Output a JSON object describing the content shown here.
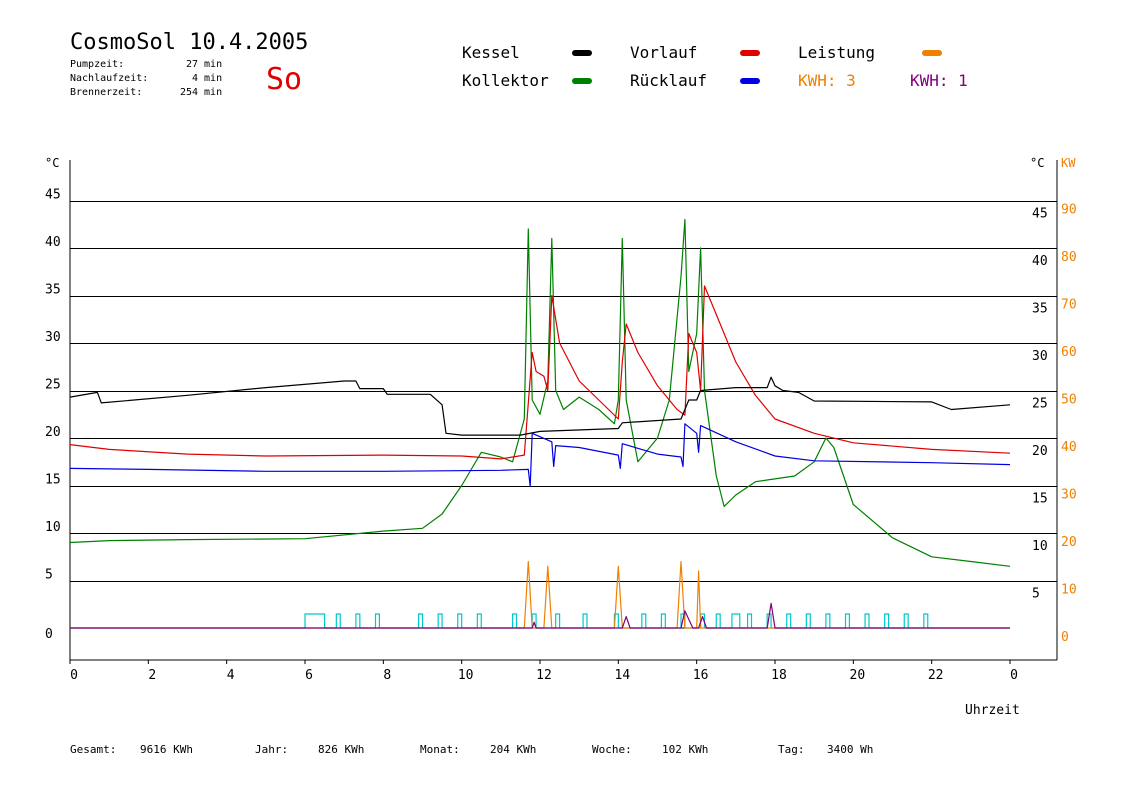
{
  "header": {
    "title": "CosmoSol 10.4.2005",
    "day": "So",
    "stats": [
      {
        "label": "Pumpzeit:",
        "value": "27",
        "unit": "min"
      },
      {
        "label": "Nachlaufzeit:",
        "value": "4",
        "unit": "min"
      },
      {
        "label": "Brennerzeit:",
        "value": "254",
        "unit": "min"
      }
    ]
  },
  "legend": {
    "kessel": {
      "label": "Kessel",
      "color": "#000000"
    },
    "vorlauf": {
      "label": "Vorlauf",
      "color": "#e00000"
    },
    "leistung": {
      "label": "Leistung",
      "color": "#f08000"
    },
    "kollektor": {
      "label": "Kollektor",
      "color": "#008000"
    },
    "ruecklauf": {
      "label": "Rücklauf",
      "color": "#0000e0"
    },
    "kwh1": {
      "label": "KWH: 3",
      "color": "#f08000"
    },
    "kwh2": {
      "label": "KWH: 1",
      "color": "#800080"
    }
  },
  "footer": [
    {
      "label": "Gesamt:",
      "value": "9616 KWh"
    },
    {
      "label": "Jahr:",
      "value": "826 KWh"
    },
    {
      "label": "Monat:",
      "value": "204 KWh"
    },
    {
      "label": "Woche:",
      "value": "102 KWh"
    },
    {
      "label": "Tag:",
      "value": "3400 Wh"
    }
  ],
  "chart_data": {
    "type": "line",
    "xlabel": "Uhrzeit",
    "ylabel_left": "°C",
    "ylabel_right_temp": "°C",
    "ylabel_right_power": "KW",
    "x_range": [
      0,
      24
    ],
    "x_ticks": [
      "0",
      "2",
      "4",
      "6",
      "8",
      "10",
      "12",
      "14",
      "16",
      "18",
      "20",
      "22",
      "0"
    ],
    "y_range": [
      0,
      50
    ],
    "y_ticks_left": [
      "0",
      "5",
      "10",
      "15",
      "20",
      "25",
      "30",
      "35",
      "40",
      "45"
    ],
    "y_ticks_right_temp": [
      "5",
      "10",
      "15",
      "20",
      "25",
      "30",
      "35",
      "40",
      "45"
    ],
    "y_ticks_right_power": [
      "0",
      "10",
      "20",
      "30",
      "40",
      "50",
      "60",
      "70",
      "80",
      "90"
    ],
    "grid": "horizontal",
    "series": [
      {
        "name": "Kessel",
        "color": "#000000",
        "points": [
          [
            0,
            24.3
          ],
          [
            0.7,
            24.8
          ],
          [
            0.8,
            23.7
          ],
          [
            3,
            24.5
          ],
          [
            5,
            25.3
          ],
          [
            7,
            26
          ],
          [
            7.3,
            26
          ],
          [
            7.4,
            25.2
          ],
          [
            8,
            25.2
          ],
          [
            8.1,
            24.6
          ],
          [
            9.2,
            24.6
          ],
          [
            9.5,
            23.5
          ],
          [
            9.6,
            20.5
          ],
          [
            10,
            20.3
          ],
          [
            11.5,
            20.3
          ],
          [
            12,
            20.7
          ],
          [
            14,
            21
          ],
          [
            14.1,
            21.6
          ],
          [
            15.6,
            22
          ],
          [
            15.8,
            24
          ],
          [
            16,
            24
          ],
          [
            16.1,
            25
          ],
          [
            17,
            25.3
          ],
          [
            17.8,
            25.3
          ],
          [
            17.9,
            26.4
          ],
          [
            18,
            25.5
          ],
          [
            18.2,
            25
          ],
          [
            18.6,
            24.8
          ],
          [
            19,
            23.9
          ],
          [
            22,
            23.8
          ],
          [
            22.5,
            23
          ],
          [
            24,
            23.5
          ]
        ]
      },
      {
        "name": "Vorlauf",
        "color": "#e00000",
        "points": [
          [
            0,
            19.3
          ],
          [
            1,
            18.8
          ],
          [
            3,
            18.3
          ],
          [
            5,
            18.1
          ],
          [
            8,
            18.2
          ],
          [
            10,
            18.1
          ],
          [
            11,
            17.8
          ],
          [
            11.6,
            18.2
          ],
          [
            11.8,
            29
          ],
          [
            11.9,
            27
          ],
          [
            12.1,
            26.5
          ],
          [
            12.2,
            25
          ],
          [
            12.3,
            35
          ],
          [
            12.5,
            30
          ],
          [
            13,
            26
          ],
          [
            13.5,
            24
          ],
          [
            14,
            22
          ],
          [
            14.1,
            28
          ],
          [
            14.2,
            32
          ],
          [
            14.5,
            29
          ],
          [
            15,
            25.5
          ],
          [
            15.5,
            23
          ],
          [
            15.7,
            22.4
          ],
          [
            15.8,
            31
          ],
          [
            16,
            29
          ],
          [
            16.1,
            25
          ],
          [
            16.2,
            36
          ],
          [
            16.5,
            33
          ],
          [
            17,
            28
          ],
          [
            17.5,
            24.5
          ],
          [
            18,
            22
          ],
          [
            19,
            20.5
          ],
          [
            20,
            19.5
          ],
          [
            22,
            18.8
          ],
          [
            24,
            18.4
          ]
        ]
      },
      {
        "name": "Rücklauf",
        "color": "#0000e0",
        "points": [
          [
            0,
            16.8
          ],
          [
            2,
            16.7
          ],
          [
            5,
            16.5
          ],
          [
            8,
            16.5
          ],
          [
            11,
            16.6
          ],
          [
            11.7,
            16.7
          ],
          [
            11.75,
            14.9
          ],
          [
            11.8,
            20.5
          ],
          [
            12.3,
            19.6
          ],
          [
            12.35,
            17
          ],
          [
            12.4,
            19.2
          ],
          [
            13,
            19
          ],
          [
            14,
            18.2
          ],
          [
            14.05,
            16.8
          ],
          [
            14.1,
            19.4
          ],
          [
            15,
            18.3
          ],
          [
            15.6,
            18
          ],
          [
            15.65,
            17
          ],
          [
            15.7,
            21.5
          ],
          [
            16,
            20.5
          ],
          [
            16.05,
            18.5
          ],
          [
            16.1,
            21.3
          ],
          [
            17,
            19.6
          ],
          [
            18,
            18.1
          ],
          [
            19,
            17.6
          ],
          [
            22,
            17.4
          ],
          [
            24,
            17.2
          ]
        ]
      },
      {
        "name": "Kollektor",
        "color": "#008000",
        "points": [
          [
            0,
            9
          ],
          [
            1,
            9.2
          ],
          [
            3,
            9.3
          ],
          [
            6,
            9.4
          ],
          [
            8,
            10.2
          ],
          [
            9,
            10.5
          ],
          [
            9.5,
            12
          ],
          [
            10,
            15
          ],
          [
            10.5,
            18.5
          ],
          [
            11,
            18
          ],
          [
            11.3,
            17.5
          ],
          [
            11.6,
            22
          ],
          [
            11.7,
            42
          ],
          [
            11.8,
            24
          ],
          [
            12,
            22.5
          ],
          [
            12.2,
            26
          ],
          [
            12.3,
            41
          ],
          [
            12.4,
            25
          ],
          [
            12.6,
            23
          ],
          [
            13,
            24.3
          ],
          [
            13.5,
            23
          ],
          [
            13.9,
            21.5
          ],
          [
            14,
            24
          ],
          [
            14.1,
            41
          ],
          [
            14.2,
            24
          ],
          [
            14.5,
            17.5
          ],
          [
            15,
            20
          ],
          [
            15.3,
            24
          ],
          [
            15.6,
            37
          ],
          [
            15.7,
            43
          ],
          [
            15.8,
            27
          ],
          [
            16,
            31
          ],
          [
            16.1,
            40
          ],
          [
            16.2,
            25
          ],
          [
            16.5,
            16
          ],
          [
            16.7,
            12.8
          ],
          [
            17,
            14
          ],
          [
            17.5,
            15.4
          ],
          [
            18.5,
            16
          ],
          [
            19,
            17.5
          ],
          [
            19.3,
            20
          ],
          [
            19.5,
            19
          ],
          [
            20,
            13
          ],
          [
            21,
            9.5
          ],
          [
            22,
            7.5
          ],
          [
            23,
            7
          ],
          [
            24,
            6.5
          ]
        ]
      },
      {
        "name": "Leistung",
        "color": "#f08000",
        "axis": "power",
        "points": [
          [
            0,
            0
          ],
          [
            11.6,
            0
          ],
          [
            11.7,
            7
          ],
          [
            11.8,
            0
          ],
          [
            12.1,
            0
          ],
          [
            12.2,
            6.5
          ],
          [
            12.3,
            0
          ],
          [
            13.9,
            0
          ],
          [
            14,
            6.5
          ],
          [
            14.1,
            0
          ],
          [
            15.5,
            0
          ],
          [
            15.6,
            7
          ],
          [
            15.7,
            0
          ],
          [
            16,
            0
          ],
          [
            16.05,
            6
          ],
          [
            16.1,
            0
          ],
          [
            24,
            0
          ]
        ]
      },
      {
        "name": "KWH",
        "color": "#800080",
        "axis": "power",
        "points": [
          [
            0,
            0
          ],
          [
            11.8,
            0
          ],
          [
            11.85,
            0.6
          ],
          [
            11.9,
            0
          ],
          [
            14.1,
            0
          ],
          [
            14.2,
            1.2
          ],
          [
            14.3,
            0
          ],
          [
            15.6,
            0
          ],
          [
            15.7,
            1.8
          ],
          [
            15.9,
            0
          ],
          [
            16.05,
            0
          ],
          [
            16.15,
            1.2
          ],
          [
            16.25,
            0
          ],
          [
            17.8,
            0
          ],
          [
            17.9,
            2.6
          ],
          [
            18,
            0
          ],
          [
            24,
            0
          ]
        ]
      }
    ],
    "pump_pulses": [
      [
        6,
        6.5
      ],
      [
        6.8,
        6.9
      ],
      [
        7.3,
        7.4
      ],
      [
        7.8,
        7.9
      ],
      [
        8.9,
        9
      ],
      [
        9.4,
        9.5
      ],
      [
        9.9,
        10
      ],
      [
        10.4,
        10.5
      ],
      [
        11.3,
        11.4
      ],
      [
        11.8,
        11.9
      ],
      [
        12.4,
        12.5
      ],
      [
        13.1,
        13.2
      ],
      [
        13.9,
        14
      ],
      [
        14.6,
        14.7
      ],
      [
        15.1,
        15.2
      ],
      [
        15.6,
        15.7
      ],
      [
        16.1,
        16.2
      ],
      [
        16.5,
        16.6
      ],
      [
        16.9,
        17.1
      ],
      [
        17.3,
        17.4
      ],
      [
        17.8,
        17.9
      ],
      [
        18.3,
        18.4
      ],
      [
        18.8,
        18.9
      ],
      [
        19.3,
        19.4
      ],
      [
        19.8,
        19.9
      ],
      [
        20.3,
        20.4
      ],
      [
        20.8,
        20.9
      ],
      [
        21.3,
        21.4
      ],
      [
        21.8,
        21.9
      ]
    ]
  }
}
